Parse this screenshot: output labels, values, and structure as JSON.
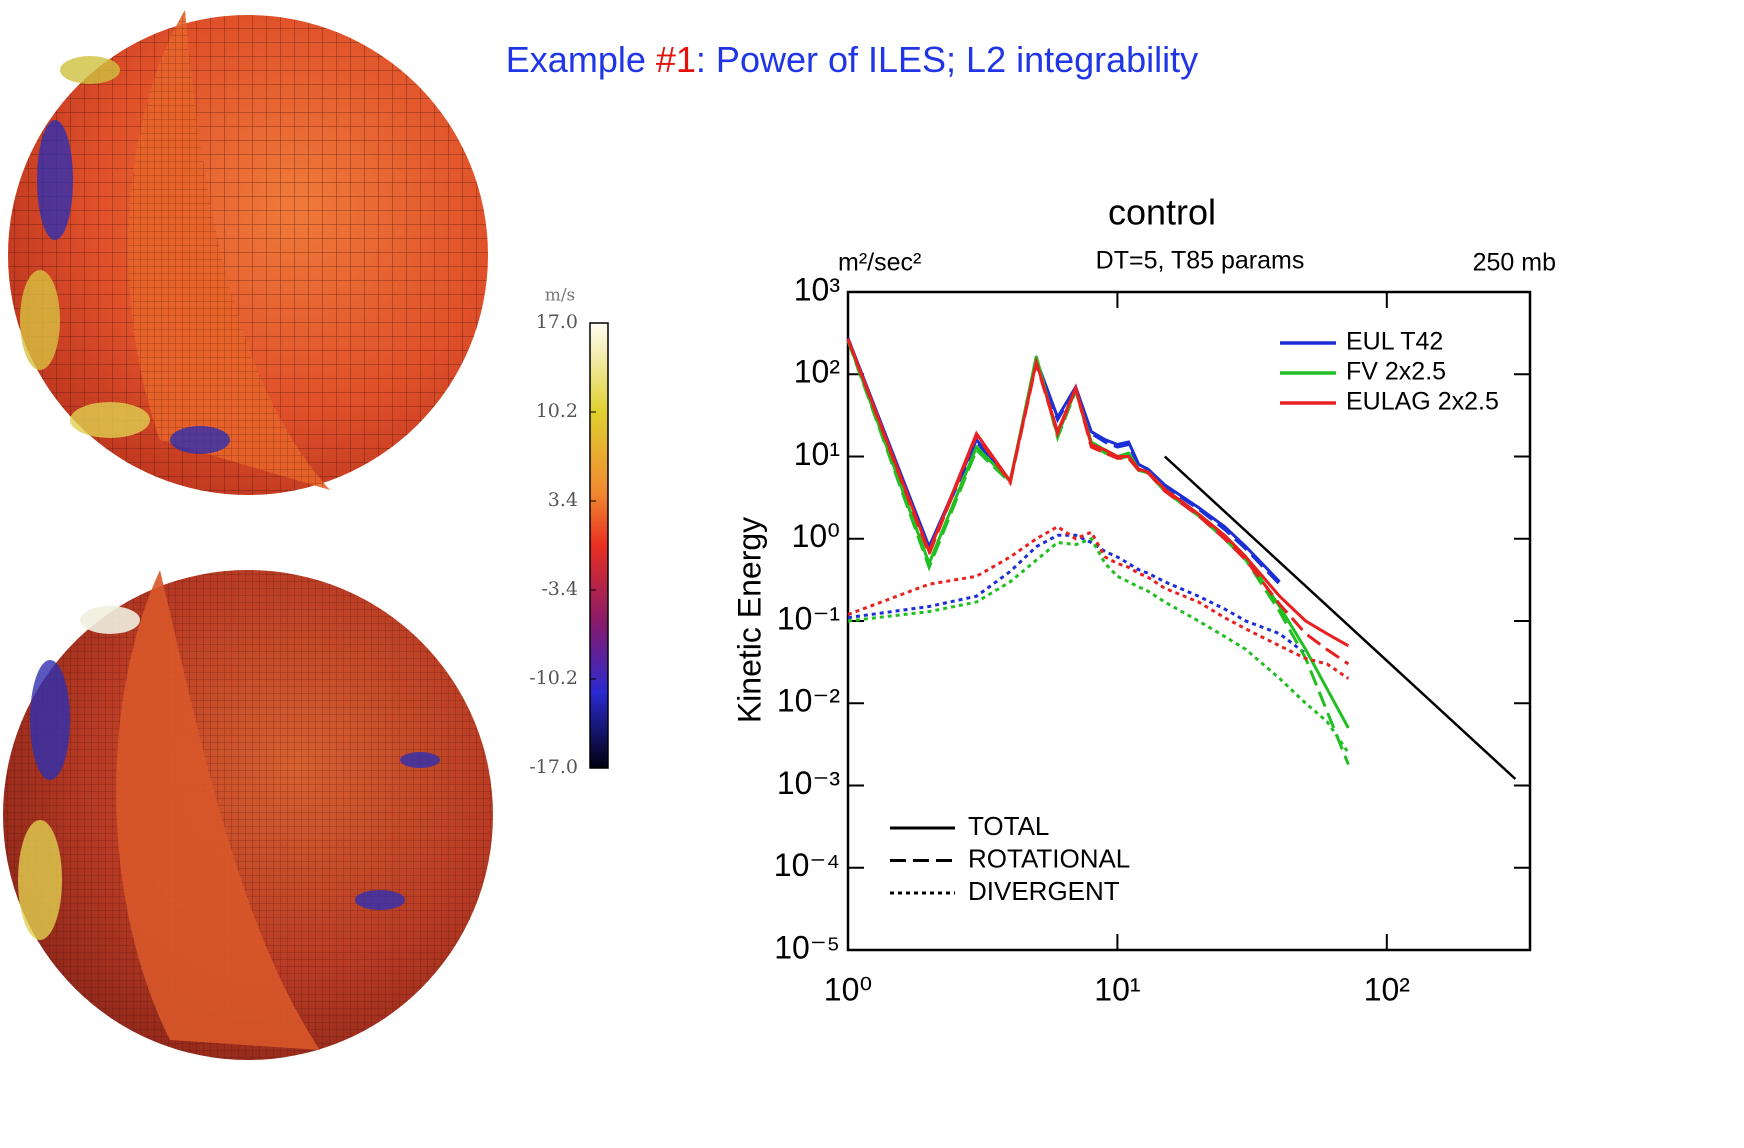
{
  "title_parts": [
    {
      "text": "Example ",
      "color": "#1f35e6"
    },
    {
      "text": "#1",
      "color": "#e3120b"
    },
    {
      "text": ": Power of ILES; L2 integrability",
      "color": "#1f35e6"
    }
  ],
  "colorbar": {
    "unit": "m/s",
    "lim": [
      -17,
      17
    ],
    "ticks": [
      {
        "value": 17,
        "label": "17.0"
      },
      {
        "value": 10.2,
        "label": "10.2"
      },
      {
        "value": 3.4,
        "label": "3.4"
      },
      {
        "value": -3.4,
        "label": "-3.4"
      },
      {
        "value": -10.2,
        "label": "-10.2"
      },
      {
        "value": -17,
        "label": "-17.0"
      }
    ]
  },
  "chart_data": {
    "type": "line",
    "title": "control",
    "subtitle": "DT=5, T85 params",
    "unit_label": "m²/sec²",
    "level_label": "250 mb",
    "y_label": "Kinetic Energy",
    "x_log": true,
    "y_log": true,
    "xlim": [
      1,
      340
    ],
    "ylim": [
      1e-05,
      1000
    ],
    "xticks": [
      {
        "value": 1,
        "label": "10⁰"
      },
      {
        "value": 10,
        "label": "10¹"
      },
      {
        "value": 100,
        "label": "10²"
      }
    ],
    "yticks": [
      {
        "value": 1e-05,
        "label": "10⁻⁵"
      },
      {
        "value": 0.0001,
        "label": "10⁻⁴"
      },
      {
        "value": 0.001,
        "label": "10⁻³"
      },
      {
        "value": 0.01,
        "label": "10⁻²"
      },
      {
        "value": 0.1,
        "label": "10⁻¹"
      },
      {
        "value": 1,
        "label": "10⁰"
      },
      {
        "value": 10,
        "label": "10¹"
      },
      {
        "value": 100,
        "label": "10²"
      },
      {
        "value": 1000,
        "label": "10³"
      }
    ],
    "x": [
      1,
      2,
      3,
      4,
      5,
      6,
      7,
      8,
      9,
      10,
      11,
      12,
      13,
      15,
      20,
      25,
      30,
      40,
      50,
      60,
      72
    ],
    "line_styles": [
      {
        "name": "TOTAL",
        "dash": "solid"
      },
      {
        "name": "ROTATIONAL",
        "dash": "dashed"
      },
      {
        "name": "DIVERGENT",
        "dash": "dotted"
      }
    ],
    "series": [
      {
        "name": "EUL T42",
        "color": "#1c2fd6",
        "components": [
          [
            275,
            0.8,
            16,
            5,
            150,
            30,
            70,
            20,
            16,
            14,
            15,
            8,
            7,
            4.5,
            2.4,
            1.4,
            0.8,
            0.3,
            null,
            null,
            null
          ],
          [
            270,
            0.75,
            15,
            5,
            145,
            28,
            68,
            19,
            15,
            13,
            14,
            7.5,
            6.8,
            4.3,
            2.3,
            1.3,
            0.75,
            0.28,
            null,
            null,
            null
          ],
          [
            0.11,
            0.15,
            0.2,
            0.4,
            0.8,
            1.1,
            1.1,
            0.9,
            0.7,
            0.6,
            0.5,
            0.42,
            0.38,
            0.3,
            0.2,
            0.14,
            0.1,
            0.07,
            0.04,
            null,
            null
          ]
        ]
      },
      {
        "name": "FV 2x2.5",
        "color": "#22bf22",
        "components": [
          [
            260,
            0.5,
            13,
            5,
            165,
            18,
            65,
            15,
            12,
            10,
            11,
            7,
            6.5,
            4,
            2,
            1.1,
            0.6,
            0.15,
            0.045,
            0.015,
            0.005
          ],
          [
            255,
            0.45,
            12,
            4.8,
            160,
            17,
            63,
            14,
            11,
            9.5,
            10,
            6.8,
            6.3,
            3.8,
            1.9,
            1,
            0.55,
            0.13,
            0.035,
            0.008,
            0.0018
          ],
          [
            0.1,
            0.13,
            0.17,
            0.3,
            0.55,
            0.9,
            0.85,
            1,
            0.5,
            0.35,
            0.3,
            0.26,
            0.23,
            0.17,
            0.1,
            0.065,
            0.045,
            0.02,
            0.01,
            0.006,
            0.0025
          ]
        ]
      },
      {
        "name": "EULAG 2x2.5",
        "color": "#e82020",
        "components": [
          [
            270,
            0.7,
            19,
            5,
            140,
            20,
            68,
            14,
            12,
            10,
            10,
            7,
            6.5,
            4,
            2,
            1.1,
            0.6,
            0.2,
            0.1,
            0.07,
            0.05
          ],
          [
            265,
            0.65,
            18,
            4.8,
            135,
            19,
            66,
            13,
            11,
            9.5,
            9.5,
            6.8,
            6.3,
            3.8,
            1.9,
            1,
            0.55,
            0.16,
            0.07,
            0.045,
            0.03
          ],
          [
            0.12,
            0.28,
            0.35,
            0.6,
            1,
            1.4,
            1,
            1.2,
            0.6,
            0.5,
            0.45,
            0.38,
            0.34,
            0.25,
            0.17,
            0.11,
            0.08,
            0.05,
            0.035,
            0.03,
            0.02
          ]
        ]
      }
    ],
    "reference_line": {
      "color": "#000000",
      "x": [
        15,
        300
      ],
      "values": [
        10,
        0.0012
      ]
    }
  }
}
